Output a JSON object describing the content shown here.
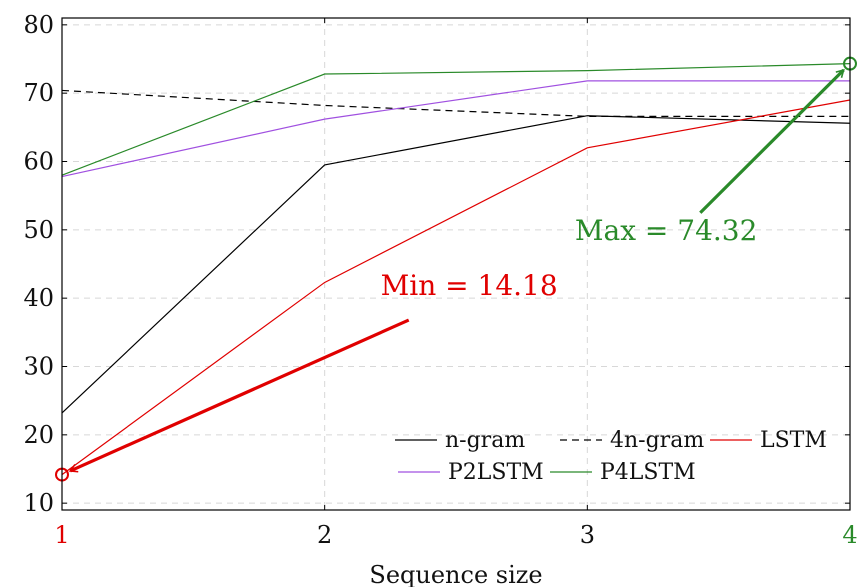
{
  "chart_data": {
    "type": "line",
    "title": "",
    "xlabel": "Sequence size",
    "ylabel": "",
    "xlim": [
      1,
      4
    ],
    "ylim": [
      9,
      81
    ],
    "grid": true,
    "x": [
      1,
      2,
      3,
      4
    ],
    "xticks": [
      {
        "label": "1",
        "color": "#e00000"
      },
      {
        "label": "2",
        "color": "#111111"
      },
      {
        "label": "3",
        "color": "#111111"
      },
      {
        "label": "4",
        "color": "#2a8a2a"
      }
    ],
    "yticks": [
      10,
      20,
      30,
      40,
      50,
      60,
      70,
      80
    ],
    "series": [
      {
        "name": "n-gram",
        "color": "#000000",
        "dashed": false,
        "values": [
          23.2,
          59.5,
          66.7,
          65.6
        ]
      },
      {
        "name": "4n-gram",
        "color": "#000000",
        "dashed": true,
        "values": [
          70.4,
          68.2,
          66.6,
          66.6
        ]
      },
      {
        "name": "LSTM",
        "color": "#e00000",
        "dashed": false,
        "values": [
          14.18,
          42.3,
          62.0,
          69.0
        ]
      },
      {
        "name": "P2LSTM",
        "color": "#a050e0",
        "dashed": false,
        "values": [
          57.8,
          66.2,
          71.8,
          71.8
        ]
      },
      {
        "name": "P4LSTM",
        "color": "#2a8a2a",
        "dashed": false,
        "values": [
          58.0,
          72.8,
          73.3,
          74.32
        ]
      }
    ],
    "legend_position": "bottom-right",
    "annotations": [
      {
        "text": "Min = 14.18",
        "color": "#e00000",
        "point_x": 1,
        "point_y": 14.18,
        "label_x": 2.55,
        "label_y": 40.5,
        "tail_x": 2.32,
        "tail_y": 36.8
      },
      {
        "text": "Max = 74.32",
        "color": "#2a8a2a",
        "point_x": 4,
        "point_y": 74.32,
        "label_x": 3.3,
        "label_y": 48.5,
        "tail_x": 3.43,
        "tail_y": 52.5
      }
    ]
  }
}
